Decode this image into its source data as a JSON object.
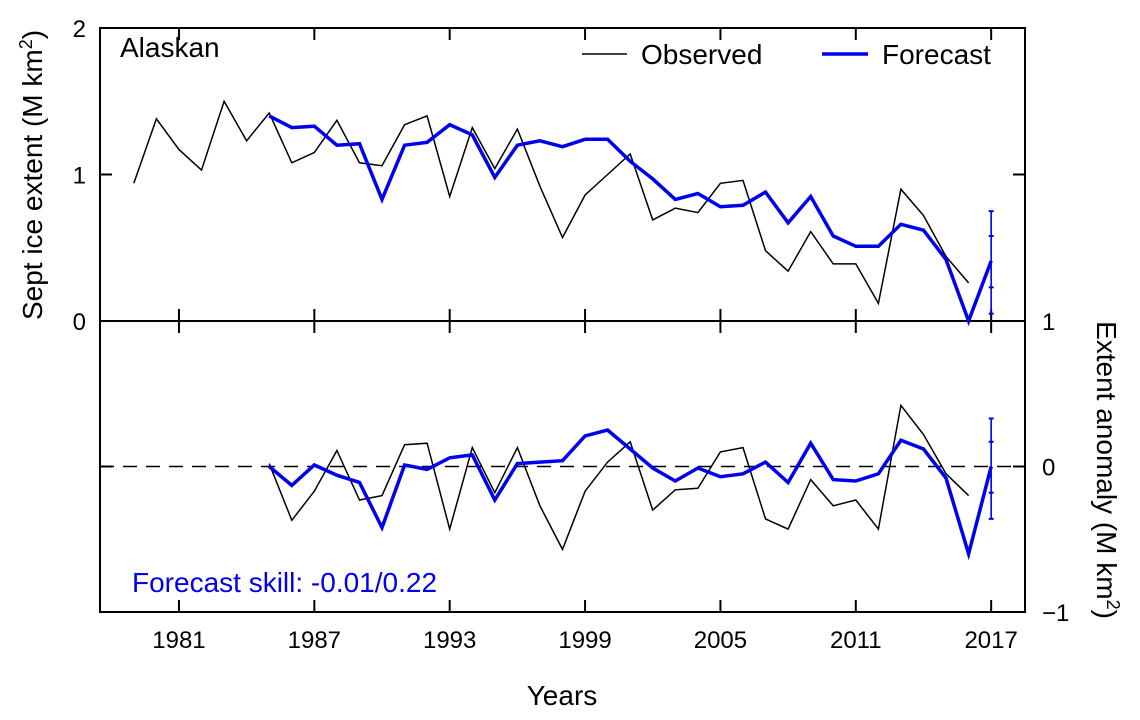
{
  "chart_data": [
    {
      "type": "line",
      "panel_label": "Alaskan",
      "xlabel": "",
      "ylabel": "Sept ice extent (M km²)",
      "ylabel_parts": {
        "main": "Sept ice extent (M km",
        "sup": "2",
        "end": ")"
      },
      "xlim": [
        1977.5,
        2018.5
      ],
      "ylim": [
        0,
        2
      ],
      "yticks": [
        "0",
        "1",
        "2"
      ],
      "legend_position": "top-right",
      "series": [
        {
          "name": "Observed",
          "color": "#000000",
          "x": [
            1979,
            1980,
            1981,
            1982,
            1983,
            1984,
            1985,
            1986,
            1987,
            1988,
            1989,
            1990,
            1991,
            1992,
            1993,
            1994,
            1995,
            1996,
            1997,
            1998,
            1999,
            2000,
            2001,
            2002,
            2003,
            2004,
            2005,
            2006,
            2007,
            2008,
            2009,
            2010,
            2011,
            2012,
            2013,
            2014,
            2015,
            2016
          ],
          "values": [
            0.94,
            1.38,
            1.17,
            1.03,
            1.5,
            1.23,
            1.42,
            1.08,
            1.15,
            1.37,
            1.08,
            1.06,
            1.34,
            1.4,
            0.85,
            1.32,
            1.04,
            1.31,
            0.92,
            0.57,
            0.86,
            1.0,
            1.14,
            0.69,
            0.77,
            0.74,
            0.94,
            0.96,
            0.48,
            0.34,
            0.61,
            0.39,
            0.39,
            0.12,
            0.9,
            0.72,
            0.44,
            0.26
          ]
        },
        {
          "name": "Forecast",
          "color": "#0000ee",
          "x": [
            1985,
            1986,
            1987,
            1988,
            1989,
            1990,
            1991,
            1992,
            1993,
            1994,
            1995,
            1996,
            1997,
            1998,
            1999,
            2000,
            2001,
            2002,
            2003,
            2004,
            2005,
            2006,
            2007,
            2008,
            2009,
            2010,
            2011,
            2012,
            2013,
            2014,
            2015,
            2016,
            2017
          ],
          "values": [
            1.4,
            1.32,
            1.33,
            1.2,
            1.21,
            0.83,
            1.2,
            1.22,
            1.34,
            1.27,
            0.98,
            1.2,
            1.23,
            1.19,
            1.24,
            1.24,
            1.09,
            0.97,
            0.83,
            0.87,
            0.78,
            0.79,
            0.88,
            0.67,
            0.85,
            0.58,
            0.51,
            0.51,
            0.66,
            0.62,
            0.42,
            0.0,
            0.41
          ]
        }
      ],
      "error_bar": {
        "x": 2017,
        "center": 0.41,
        "inner": [
          0.23,
          0.58
        ],
        "outer": [
          0.05,
          0.75
        ]
      }
    },
    {
      "type": "line",
      "xlabel": "Years",
      "ylabel": "Extent anomaly (M km²)",
      "ylabel_parts": {
        "main": "Extent anomaly (M km",
        "sup": "2",
        "end": ")"
      },
      "annotation": "Forecast skill: -0.01/0.22",
      "xlim": [
        1977.5,
        2018.5
      ],
      "ylim": [
        -1,
        1
      ],
      "yticks": [
        "−1",
        "0",
        "1"
      ],
      "xticks": [
        "1981",
        "1987",
        "1993",
        "1999",
        "2005",
        "2011",
        "2017"
      ],
      "reference_line": {
        "y": 0,
        "style": "dashed"
      },
      "series": [
        {
          "color": "#000000",
          "x": [
            1985,
            1986,
            1987,
            1988,
            1989,
            1990,
            1991,
            1992,
            1993,
            1994,
            1995,
            1996,
            1997,
            1998,
            1999,
            2000,
            2001,
            2002,
            2003,
            2004,
            2005,
            2006,
            2007,
            2008,
            2009,
            2010,
            2011,
            2012,
            2013,
            2014,
            2015,
            2016
          ],
          "values": [
            0.02,
            -0.37,
            -0.17,
            0.11,
            -0.23,
            -0.2,
            0.15,
            0.16,
            -0.43,
            0.13,
            -0.18,
            0.13,
            -0.27,
            -0.57,
            -0.17,
            0.03,
            0.17,
            -0.3,
            -0.16,
            -0.15,
            0.1,
            0.13,
            -0.36,
            -0.43,
            -0.09,
            -0.27,
            -0.23,
            -0.43,
            0.42,
            0.22,
            -0.05,
            -0.2
          ]
        },
        {
          "color": "#0000ee",
          "x": [
            1985,
            1986,
            1987,
            1988,
            1989,
            1990,
            1991,
            1992,
            1993,
            1994,
            1995,
            1996,
            1997,
            1998,
            1999,
            2000,
            2001,
            2002,
            2003,
            2004,
            2005,
            2006,
            2007,
            2008,
            2009,
            2010,
            2011,
            2012,
            2013,
            2014,
            2015,
            2016,
            2017
          ],
          "values": [
            0.0,
            -0.13,
            0.01,
            -0.06,
            -0.11,
            -0.42,
            0.01,
            -0.02,
            0.06,
            0.08,
            -0.23,
            0.02,
            0.03,
            0.04,
            0.21,
            0.25,
            0.12,
            -0.01,
            -0.1,
            -0.01,
            -0.07,
            -0.05,
            0.03,
            -0.11,
            0.16,
            -0.09,
            -0.1,
            -0.05,
            0.18,
            0.12,
            -0.08,
            -0.6,
            0.0
          ]
        }
      ],
      "error_bar": {
        "x": 2017,
        "center": 0.0,
        "inner": [
          -0.18,
          0.17
        ],
        "outer": [
          -0.36,
          0.33
        ]
      }
    }
  ]
}
